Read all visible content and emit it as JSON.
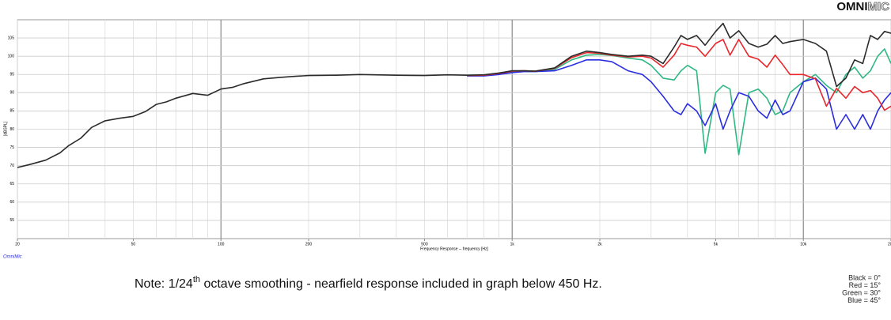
{
  "chart_data": {
    "type": "line",
    "logo": {
      "bold": "OMNI",
      "light": "MIC"
    },
    "y_label": "[dBSPL]",
    "x_label": "Frequency Response -- frequency [Hz]",
    "watermark": "OmniMic",
    "note": {
      "before": "Note: 1/24",
      "sup": "th",
      "after": " octave smoothing - nearfield response included in graph below 450 Hz."
    },
    "log_x": true,
    "grid": true,
    "xlim": [
      20,
      20000
    ],
    "xticks": [
      20,
      50,
      100,
      200,
      500,
      {
        "value": 1000,
        "label": "1k"
      },
      {
        "value": 2000,
        "label": "2k"
      },
      {
        "value": 5000,
        "label": "5k"
      },
      {
        "value": 10000,
        "label": "10k"
      },
      {
        "value": 20000,
        "label": "20k"
      }
    ],
    "ylim": [
      50,
      110
    ],
    "yticks": [
      55,
      60,
      65,
      70,
      75,
      80,
      85,
      90,
      95,
      100,
      105
    ],
    "x": [
      20,
      22,
      25,
      28,
      30,
      33,
      36,
      40,
      45,
      50,
      55,
      60,
      65,
      70,
      80,
      90,
      100,
      110,
      120,
      140,
      160,
      180,
      200,
      250,
      300,
      400,
      500,
      600,
      700,
      800,
      900,
      1000,
      1100,
      1200,
      1400,
      1600,
      1800,
      2000,
      2200,
      2500,
      2800,
      3000,
      3300,
      3600,
      3800,
      4000,
      4300,
      4600,
      5000,
      5300,
      5600,
      6000,
      6500,
      7000,
      7500,
      8000,
      8500,
      9000,
      10000,
      11000,
      12000,
      13000,
      14000,
      15000,
      16000,
      17000,
      18000,
      19000,
      20000
    ],
    "series": [
      {
        "name": "Green = 30°",
        "color": "#2fb883",
        "values": [
          null,
          null,
          null,
          null,
          null,
          null,
          null,
          null,
          null,
          null,
          null,
          null,
          null,
          null,
          null,
          null,
          null,
          null,
          null,
          null,
          null,
          null,
          null,
          null,
          null,
          null,
          null,
          null,
          94.6,
          94.7,
          95.1,
          95.7,
          95.8,
          95.8,
          96.4,
          99,
          100.3,
          100.5,
          100.2,
          99.5,
          99,
          97.5,
          94,
          93.5,
          96,
          97.5,
          96,
          73.4,
          90,
          92,
          91,
          73,
          90,
          91,
          88.5,
          84,
          85,
          90,
          93,
          95,
          92,
          90,
          95,
          97,
          94,
          96,
          100,
          102,
          98
        ]
      },
      {
        "name": "Blue = 45°",
        "color": "#2a2ee0",
        "values": [
          null,
          null,
          null,
          null,
          null,
          null,
          null,
          null,
          null,
          null,
          null,
          null,
          null,
          null,
          null,
          null,
          null,
          null,
          null,
          null,
          null,
          null,
          null,
          null,
          null,
          null,
          null,
          null,
          94.6,
          94.6,
          95,
          95.5,
          95.8,
          95.8,
          96,
          97.5,
          99,
          99,
          98.5,
          96,
          95,
          93,
          89,
          85,
          84,
          87,
          85,
          81,
          87,
          80,
          85,
          90,
          89,
          85,
          83,
          88,
          84,
          85,
          93,
          94,
          91,
          80,
          84,
          80,
          84,
          80,
          85,
          88,
          90
        ]
      },
      {
        "name": "Red = 15°",
        "color": "#e8262b",
        "values": [
          null,
          null,
          null,
          null,
          null,
          null,
          null,
          null,
          null,
          null,
          null,
          null,
          null,
          null,
          null,
          null,
          null,
          null,
          null,
          null,
          null,
          null,
          null,
          null,
          null,
          null,
          null,
          null,
          94.7,
          94.8,
          95.3,
          95.9,
          96,
          95.9,
          96.7,
          99.6,
          101,
          100.8,
          100.3,
          99.8,
          100,
          99.5,
          97,
          100.3,
          103.5,
          103,
          102.5,
          100,
          103.5,
          104.6,
          100.3,
          104.6,
          100,
          99.2,
          97,
          100.3,
          97.7,
          95,
          95,
          93.8,
          86.3,
          91.2,
          88.5,
          91.7,
          90,
          90.6,
          88.5,
          85.2,
          86.3
        ]
      },
      {
        "name": "Black = 0°",
        "color": "#2b2b2b",
        "values": [
          69.5,
          70.3,
          71.5,
          73.5,
          75.5,
          77.5,
          80.5,
          82.3,
          83,
          83.5,
          84.8,
          86.8,
          87.5,
          88.5,
          89.8,
          89.3,
          91,
          91.5,
          92.5,
          93.8,
          94.2,
          94.5,
          94.7,
          94.8,
          95,
          94.8,
          94.7,
          94.9,
          94.8,
          94.9,
          95.4,
          96,
          96,
          95.9,
          96.8,
          100,
          101.4,
          101,
          100.5,
          100,
          100.3,
          100,
          98,
          102.5,
          105.7,
          104.6,
          105.7,
          103,
          106.8,
          109,
          105,
          107,
          103.5,
          102.5,
          103.3,
          105.7,
          103.5,
          104,
          104.6,
          103.5,
          101.4,
          91.7,
          94,
          99,
          98,
          105.7,
          104.6,
          106.8,
          106.3
        ]
      }
    ],
    "legend_position": "bottom-right"
  }
}
